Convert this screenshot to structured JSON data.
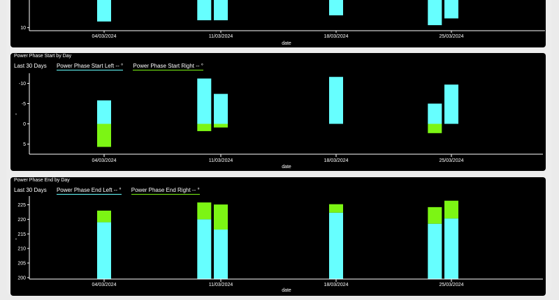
{
  "colors": {
    "left": "#66ffff",
    "right": "#7cf514",
    "background": "#000000",
    "text": "#ffffff"
  },
  "chart_data": [
    {
      "type": "bar",
      "id": "top-partial",
      "title": "",
      "xlabel": "date",
      "ylabel": "",
      "visible_y_ticks": [
        "10"
      ],
      "categories": [
        "04/03/2024",
        "11/03/2024",
        "18/03/2024",
        "25/03/2024"
      ],
      "ylim": [
        9.5,
        14.5
      ],
      "series": [
        {
          "name": "Left",
          "x": [
            "04/03/2024",
            "11/03/2024",
            "18/03/2024",
            "25/03/2024"
          ],
          "day_offset": [
            0,
            -1,
            0,
            -1
          ],
          "bottom": [
            11.0,
            11.2,
            12.0,
            10.4
          ],
          "top": [
            14.5,
            14.5,
            14.5,
            14.5
          ]
        },
        {
          "name": "Right",
          "x": [
            "11/03/2024",
            "25/03/2024"
          ],
          "day_offset": [
            0,
            0
          ],
          "bottom": [
            11.2,
            11.5
          ],
          "top": [
            14.5,
            14.5
          ]
        }
      ]
    },
    {
      "type": "bar",
      "id": "phase-start",
      "title": "Power Phase Start by Day",
      "range_label": "Last 30 Days",
      "legend": [
        "Power Phase Start Left  -- °",
        "Power Phase Start Right  -- °"
      ],
      "xlabel": "date",
      "ylabel": "°",
      "y_ticks": [
        "-10",
        "-5",
        "0",
        "5"
      ],
      "y_tick_values": [
        -10,
        -5,
        0,
        5
      ],
      "categories": [
        "04/03/2024",
        "11/03/2024",
        "18/03/2024",
        "25/03/2024"
      ],
      "ylim": [
        -12.5,
        7.5
      ],
      "inverted": true,
      "series": [
        {
          "name": "Left",
          "color": "#66ffff",
          "x": [
            "04/03/2024",
            "11/03/2024",
            "18/03/2024",
            "25/03/2024"
          ],
          "day_offset": [
            0,
            -1,
            0,
            -1
          ],
          "values": [
            -5.8,
            -11.2,
            -11.6,
            -5.0
          ]
        },
        {
          "name": "Left",
          "color": "#7cf514",
          "x": [
            "04/03/2024",
            "11/03/2024",
            "25/03/2024"
          ],
          "day_offset": [
            0,
            -1,
            -1
          ],
          "values": [
            5.7,
            1.8,
            2.3
          ]
        },
        {
          "name": "Right",
          "color": "#66ffff",
          "x": [
            "11/03/2024",
            "25/03/2024"
          ],
          "day_offset": [
            0,
            0
          ],
          "values": [
            -7.4,
            -9.7
          ]
        },
        {
          "name": "Right",
          "color": "#7cf514",
          "x": [
            "11/03/2024"
          ],
          "day_offset": [
            0
          ],
          "values": [
            0.9
          ]
        }
      ]
    },
    {
      "type": "bar",
      "id": "phase-end",
      "title": "Power Phase End by Day",
      "range_label": "Last 30 Days",
      "legend": [
        "Power Phase End Left  -- °",
        "Power Phase End Right  -- °"
      ],
      "xlabel": "date",
      "ylabel": "°",
      "y_ticks": [
        "225",
        "220",
        "215",
        "210",
        "205",
        "200"
      ],
      "y_tick_values": [
        225,
        220,
        215,
        210,
        205,
        200
      ],
      "categories": [
        "04/03/2024",
        "11/03/2024",
        "18/03/2024",
        "25/03/2024"
      ],
      "ylim": [
        199.5,
        228.0
      ],
      "series": [
        {
          "name": "Left",
          "x": [
            "04/03/2024",
            "11/03/2024",
            "18/03/2024",
            "25/03/2024"
          ],
          "day_offset": [
            0,
            -1,
            0,
            -1
          ],
          "cyan_top": [
            219.0,
            220.0,
            222.3,
            218.5
          ],
          "green_top": [
            223.0,
            225.8,
            225.2,
            224.2
          ]
        },
        {
          "name": "Right",
          "x": [
            "11/03/2024",
            "25/03/2024"
          ],
          "day_offset": [
            0,
            0
          ],
          "cyan_top": [
            216.5,
            220.3
          ],
          "green_top": [
            225.1,
            226.4
          ]
        }
      ]
    }
  ]
}
